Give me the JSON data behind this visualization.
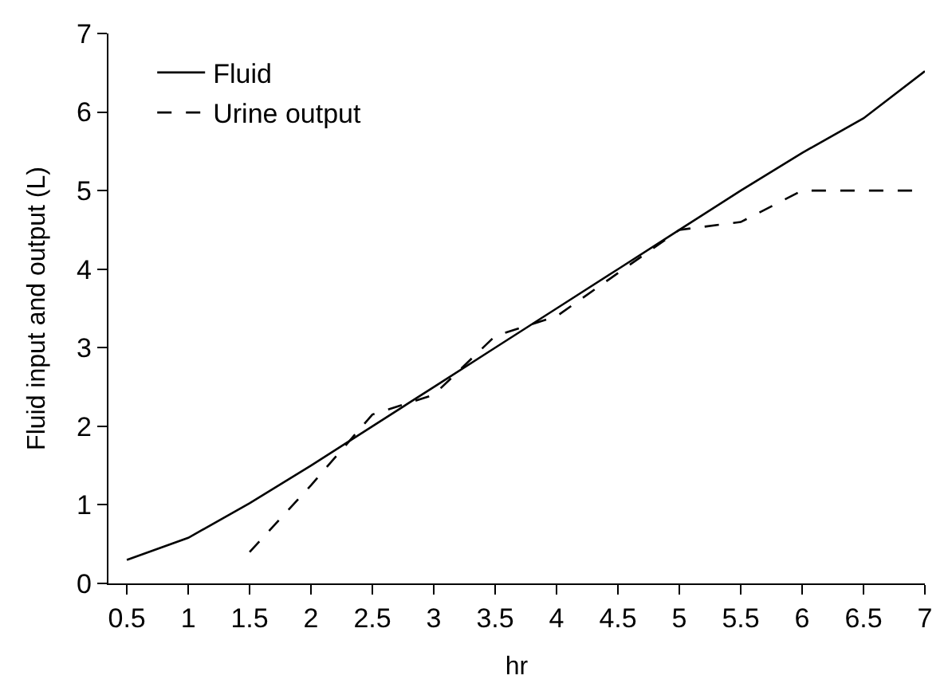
{
  "chart_data": {
    "type": "line",
    "xlabel": "hr",
    "ylabel": "Fluid input and output (L)",
    "x": [
      0.5,
      1,
      1.5,
      2,
      2.5,
      3,
      3.5,
      4,
      4.5,
      5,
      5.5,
      6,
      6.5,
      7
    ],
    "series": [
      {
        "name": "Fluid",
        "color": "#000000",
        "line_style": "solid",
        "values": [
          0.3,
          0.58,
          1.02,
          1.5,
          2.0,
          2.5,
          3.0,
          3.5,
          4.0,
          4.5,
          5.0,
          5.48,
          5.92,
          6.52
        ]
      },
      {
        "name": "Urine output",
        "color": "#000000",
        "line_style": "dashed",
        "values": [
          null,
          null,
          0.4,
          1.25,
          2.15,
          2.4,
          3.15,
          3.4,
          3.95,
          4.5,
          4.6,
          5.0,
          5.0,
          5.0
        ]
      }
    ],
    "xlim": [
      0.35,
      7
    ],
    "xticks": [
      0.5,
      1,
      1.5,
      2,
      2.5,
      3,
      3.5,
      4,
      4.5,
      5,
      5.5,
      6,
      6.5,
      7
    ],
    "ylim": [
      0,
      7
    ],
    "yticks": [
      0,
      1,
      2,
      3,
      4,
      5,
      6,
      7
    ],
    "legend": "top left",
    "marker": "none"
  }
}
